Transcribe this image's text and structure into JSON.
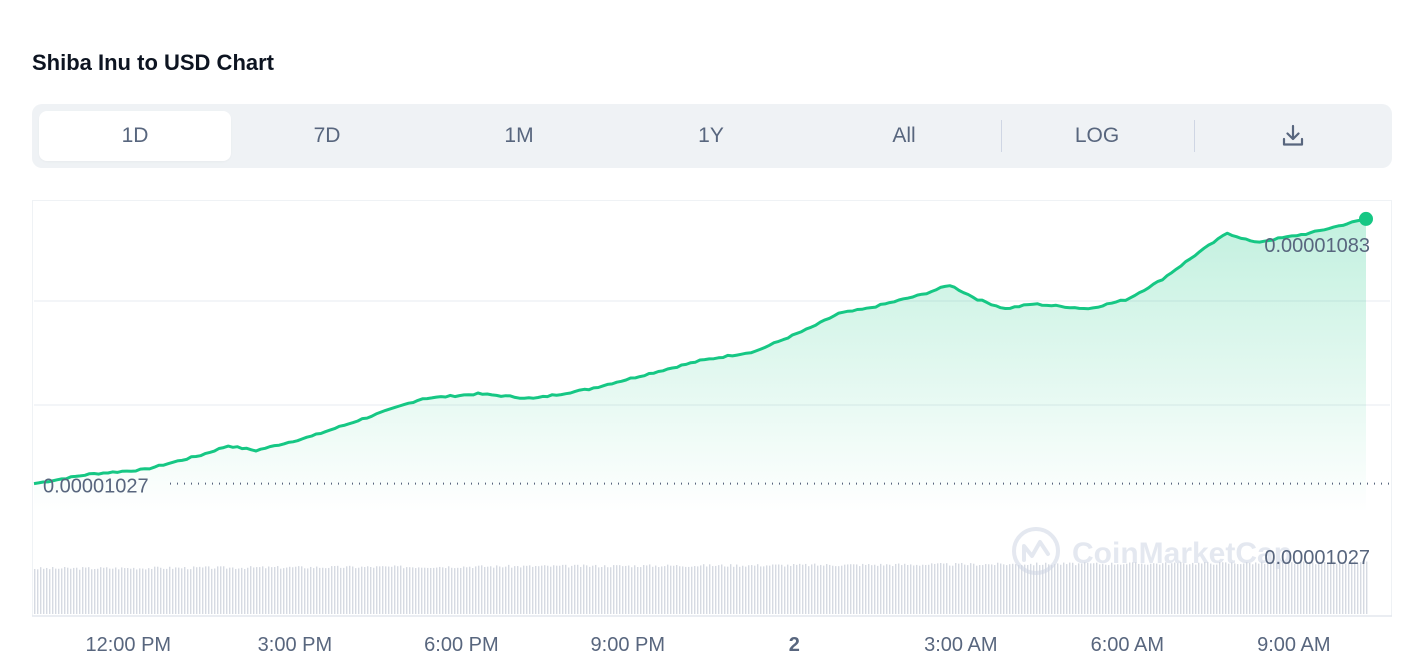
{
  "header": {
    "title": "Shiba Inu to USD Chart"
  },
  "range_tabs": [
    {
      "label": "1D",
      "active": true
    },
    {
      "label": "7D",
      "active": false
    },
    {
      "label": "1M",
      "active": false
    },
    {
      "label": "1Y",
      "active": false
    },
    {
      "label": "All",
      "active": false
    }
  ],
  "scale_toggle": {
    "label": "LOG"
  },
  "download": {
    "icon": "download-icon"
  },
  "watermark": {
    "text": "CoinMarketCap",
    "icon": "coinmarketcap-logo-icon"
  },
  "colors": {
    "line": "#16c784",
    "grid": "#eff2f5",
    "text": "#58667e",
    "tab_bg": "#eff2f5",
    "volume": "#d6dae2"
  },
  "chart_data": {
    "type": "area",
    "title": "Shiba Inu to USD Chart",
    "x_tick_labels": [
      "12:00 PM",
      "3:00 PM",
      "6:00 PM",
      "9:00 PM",
      "2",
      "3:00 AM",
      "6:00 AM",
      "9:00 AM"
    ],
    "x_hours": [
      0,
      1,
      2,
      3,
      3.5,
      4,
      5,
      6,
      6.5,
      7,
      8,
      9,
      10,
      11,
      12,
      13,
      14,
      14.5,
      15,
      16,
      16.5,
      17,
      17.5,
      18,
      19,
      19.7,
      20.3,
      21,
      21.5,
      22,
      23,
      24
    ],
    "values": [
      1.027e-05,
      1.029e-05,
      1.03e-05,
      1.033e-05,
      1.035e-05,
      1.034e-05,
      1.037e-05,
      1.041e-05,
      1.043e-05,
      1.045e-05,
      1.046e-05,
      1.045e-05,
      1.047e-05,
      1.05e-05,
      1.053e-05,
      1.055e-05,
      1.06e-05,
      1.063e-05,
      1.064e-05,
      1.067e-05,
      1.069e-05,
      1.066e-05,
      1.064e-05,
      1.065e-05,
      1.064e-05,
      1.066e-05,
      1.07e-05,
      1.076e-05,
      1.08e-05,
      1.078e-05,
      1.08e-05,
      1.083e-05
    ],
    "start_hour": 10.3,
    "reference_line": 1.027e-05,
    "labels": {
      "current_price": "0.00001083",
      "open_price": "0.00001027",
      "right_axis_price": "0.00001027"
    },
    "ylim": [
      1.021e-05,
      1.087e-05
    ],
    "grid": true,
    "volume": "bars below price chart"
  }
}
